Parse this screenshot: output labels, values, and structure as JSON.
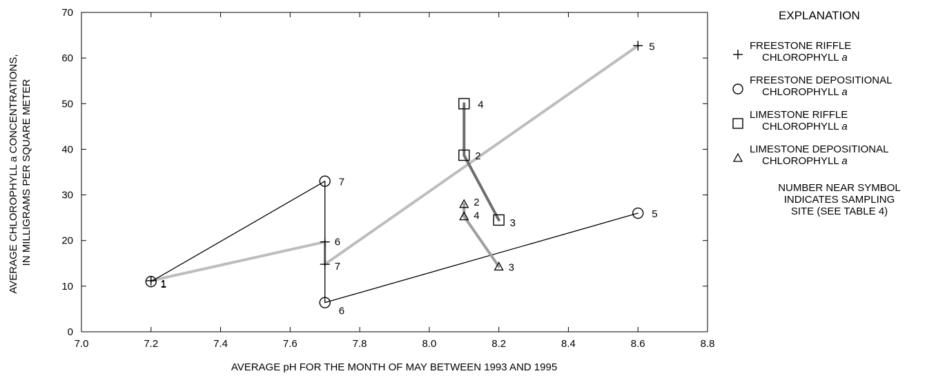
{
  "chart_data": {
    "type": "scatter",
    "xlabel": "AVERAGE pH FOR THE MONTH OF MAY BETWEEN 1993 AND 1995",
    "ylabel_lines": [
      "AVERAGE CHLOROPHYLL a CONCENTRATIONS,",
      "IN MILLIGRAMS PER SQUARE METER"
    ],
    "xlim": [
      7.0,
      8.8
    ],
    "ylim": [
      0,
      70
    ],
    "xticks": [
      "7.0",
      "7.2",
      "7.4",
      "7.6",
      "7.8",
      "8.0",
      "8.2",
      "8.4",
      "8.6",
      "8.8"
    ],
    "yticks": [
      "0",
      "10",
      "20",
      "30",
      "40",
      "50",
      "60",
      "70"
    ],
    "grid": false,
    "legend_position": "right",
    "series": [
      {
        "name": "FREESTONE RIFFLE CHLOROPHYLL a",
        "marker": "plus",
        "line_color": "#bdbdbd",
        "marker_color": "#000000",
        "points": [
          {
            "x": 7.2,
            "y": 11.2,
            "label": "1"
          },
          {
            "x": 7.7,
            "y": 19.7,
            "label": "6"
          },
          {
            "x": 7.7,
            "y": 14.8,
            "label": "7"
          },
          {
            "x": 8.6,
            "y": 62.7,
            "label": "5"
          }
        ],
        "connections": [
          [
            0,
            1
          ],
          [
            1,
            2
          ],
          [
            2,
            3
          ]
        ]
      },
      {
        "name": "FREESTONE DEPOSITIONAL CHLOROPHYLL a",
        "marker": "circle",
        "line_color": "#000000",
        "marker_color": "#000000",
        "points": [
          {
            "x": 7.2,
            "y": 11.0,
            "label": "1"
          },
          {
            "x": 7.7,
            "y": 33.0,
            "label": "7"
          },
          {
            "x": 7.7,
            "y": 6.4,
            "label": "6"
          },
          {
            "x": 8.6,
            "y": 26.0,
            "label": "5"
          }
        ],
        "connections": [
          [
            0,
            1
          ],
          [
            1,
            2
          ],
          [
            2,
            3
          ]
        ]
      },
      {
        "name": "LIMESTONE RIFFLE CHLOROPHYLL a",
        "marker": "square",
        "line_color": "#6e6e6e",
        "marker_color": "#000000",
        "points": [
          {
            "x": 8.1,
            "y": 50.0,
            "label": "4"
          },
          {
            "x": 8.1,
            "y": 38.7,
            "label": "2"
          },
          {
            "x": 8.2,
            "y": 24.5,
            "label": "3"
          }
        ],
        "connections": [
          [
            0,
            1
          ],
          [
            1,
            2
          ]
        ]
      },
      {
        "name": "LIMESTONE DEPOSITIONAL CHLOROPHYLL a",
        "marker": "triangle",
        "line_color": "#9e9e9e",
        "marker_color": "#000000",
        "points": [
          {
            "x": 8.1,
            "y": 28.0,
            "label": "2"
          },
          {
            "x": 8.1,
            "y": 25.3,
            "label": "4"
          },
          {
            "x": 8.2,
            "y": 14.3,
            "label": "3"
          }
        ],
        "connections": [
          [
            0,
            1
          ],
          [
            1,
            2
          ]
        ]
      }
    ]
  },
  "legend": {
    "title": "EXPLANATION",
    "entries": [
      {
        "marker": "plus",
        "line1": "FREESTONE RIFFLE",
        "line2_prefix": "CHLOROPHYLL",
        "line2_italic": "a"
      },
      {
        "marker": "circle",
        "line1": "FREESTONE DEPOSITIONAL",
        "line2_prefix": "CHLOROPHYLL",
        "line2_italic": "a"
      },
      {
        "marker": "square",
        "line1": "LIMESTONE RIFFLE",
        "line2_prefix": "CHLOROPHYLL",
        "line2_italic": "a"
      },
      {
        "marker": "triangle",
        "line1": "LIMESTONE DEPOSITIONAL",
        "line2_prefix": "CHLOROPHYLL",
        "line2_italic": "a"
      }
    ],
    "note_lines": [
      "NUMBER NEAR SYMBOL",
      "INDICATES SAMPLING",
      "SITE (SEE TABLE 4)"
    ]
  }
}
